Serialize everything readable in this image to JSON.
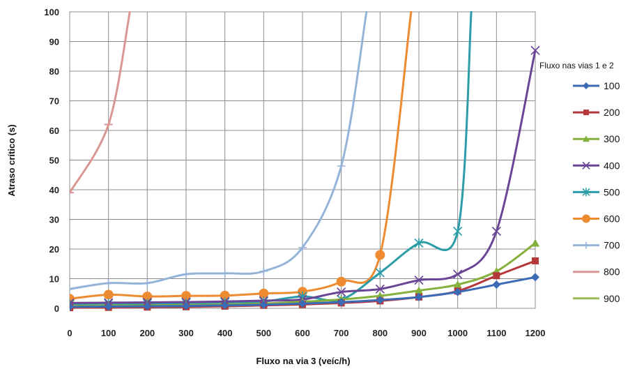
{
  "chart_data": {
    "type": "line",
    "title": "",
    "xlabel": "Fluxo na via 3 (veíc/h)",
    "ylabel": "Atraso crítico (s)",
    "x": [
      0,
      100,
      200,
      300,
      400,
      500,
      600,
      700,
      800,
      900,
      1000,
      1100,
      1200
    ],
    "xticks": [
      "0",
      "100",
      "200",
      "300",
      "400",
      "500",
      "600",
      "700",
      "800",
      "900",
      "1000",
      "1100",
      "1200"
    ],
    "xlim": [
      0,
      1200
    ],
    "ylim": [
      0,
      100
    ],
    "yticks": [
      "0",
      "10",
      "20",
      "30",
      "40",
      "50",
      "60",
      "70",
      "80",
      "90",
      "100"
    ],
    "grid": true,
    "smooth": true,
    "legend_title": "Fluxo nas vias 1 e 2",
    "legend_position": "right",
    "series": [
      {
        "name": "100",
        "color": "#3b6bb5",
        "marker": "diamond",
        "points": [
          [
            0,
            0.5
          ],
          [
            100,
            0.6
          ],
          [
            200,
            0.7
          ],
          [
            300,
            0.8
          ],
          [
            400,
            1.0
          ],
          [
            500,
            1.2
          ],
          [
            600,
            1.6
          ],
          [
            700,
            2.1
          ],
          [
            800,
            2.8
          ],
          [
            900,
            3.8
          ],
          [
            1000,
            5.5
          ],
          [
            1100,
            8.0
          ],
          [
            1200,
            10.5
          ]
        ]
      },
      {
        "name": "200",
        "color": "#b5373a",
        "marker": "square",
        "points": [
          [
            0,
            0.2
          ],
          [
            100,
            0.3
          ],
          [
            200,
            0.4
          ],
          [
            300,
            0.5
          ],
          [
            400,
            0.7
          ],
          [
            500,
            1.0
          ],
          [
            600,
            1.3
          ],
          [
            700,
            1.8
          ],
          [
            800,
            2.5
          ],
          [
            900,
            3.8
          ],
          [
            1000,
            5.8
          ],
          [
            1100,
            11.0
          ],
          [
            1200,
            16.0
          ]
        ]
      },
      {
        "name": "300",
        "color": "#84b03c",
        "marker": "triangle",
        "points": [
          [
            0,
            0.8
          ],
          [
            100,
            0.9
          ],
          [
            200,
            1.0
          ],
          [
            300,
            1.1
          ],
          [
            400,
            1.3
          ],
          [
            500,
            1.6
          ],
          [
            600,
            2.2
          ],
          [
            700,
            3.0
          ],
          [
            800,
            4.2
          ],
          [
            900,
            6.0
          ],
          [
            1000,
            8.0
          ],
          [
            1100,
            12.5
          ],
          [
            1200,
            22.0
          ]
        ]
      },
      {
        "name": "400",
        "color": "#6a4596",
        "marker": "x",
        "points": [
          [
            0,
            1.8
          ],
          [
            100,
            1.9
          ],
          [
            200,
            2.0
          ],
          [
            300,
            2.1
          ],
          [
            400,
            2.3
          ],
          [
            500,
            2.6
          ],
          [
            600,
            3.0
          ],
          [
            700,
            5.5
          ],
          [
            800,
            6.5
          ],
          [
            900,
            9.5
          ],
          [
            1000,
            11.5
          ],
          [
            1100,
            26.0
          ],
          [
            1200,
            87.0
          ]
        ]
      },
      {
        "name": "500",
        "color": "#2b9ca8",
        "marker": "star",
        "points": [
          [
            0,
            1.5
          ],
          [
            100,
            1.6
          ],
          [
            200,
            1.6
          ],
          [
            300,
            1.8
          ],
          [
            400,
            2.0
          ],
          [
            500,
            2.3
          ],
          [
            600,
            4.0
          ],
          [
            700,
            3.0
          ],
          [
            800,
            12.0
          ],
          [
            900,
            22.0
          ],
          [
            1000,
            26.0
          ],
          [
            1035,
            100
          ]
        ]
      },
      {
        "name": "600",
        "color": "#ee8a30",
        "marker": "circle",
        "points": [
          [
            0,
            3.2
          ],
          [
            100,
            4.6
          ],
          [
            200,
            4.0
          ],
          [
            300,
            4.2
          ],
          [
            400,
            4.3
          ],
          [
            500,
            5.0
          ],
          [
            600,
            5.6
          ],
          [
            700,
            9.0
          ],
          [
            800,
            18.0
          ],
          [
            880,
            100
          ]
        ]
      },
      {
        "name": "700",
        "color": "#95b3d9",
        "marker": "plus",
        "points": [
          [
            0,
            6.5
          ],
          [
            100,
            8.5
          ],
          [
            200,
            8.5
          ],
          [
            300,
            11.5
          ],
          [
            400,
            11.8
          ],
          [
            500,
            12.5
          ],
          [
            600,
            20.5
          ],
          [
            700,
            48.0
          ],
          [
            765,
            100
          ]
        ]
      },
      {
        "name": "800",
        "color": "#d99694",
        "marker": "dash",
        "points": [
          [
            0,
            39.0
          ],
          [
            100,
            62.0
          ],
          [
            155,
            100
          ]
        ]
      },
      {
        "name": "900",
        "color": "#9bbb59",
        "marker": "dash",
        "points": []
      }
    ]
  }
}
